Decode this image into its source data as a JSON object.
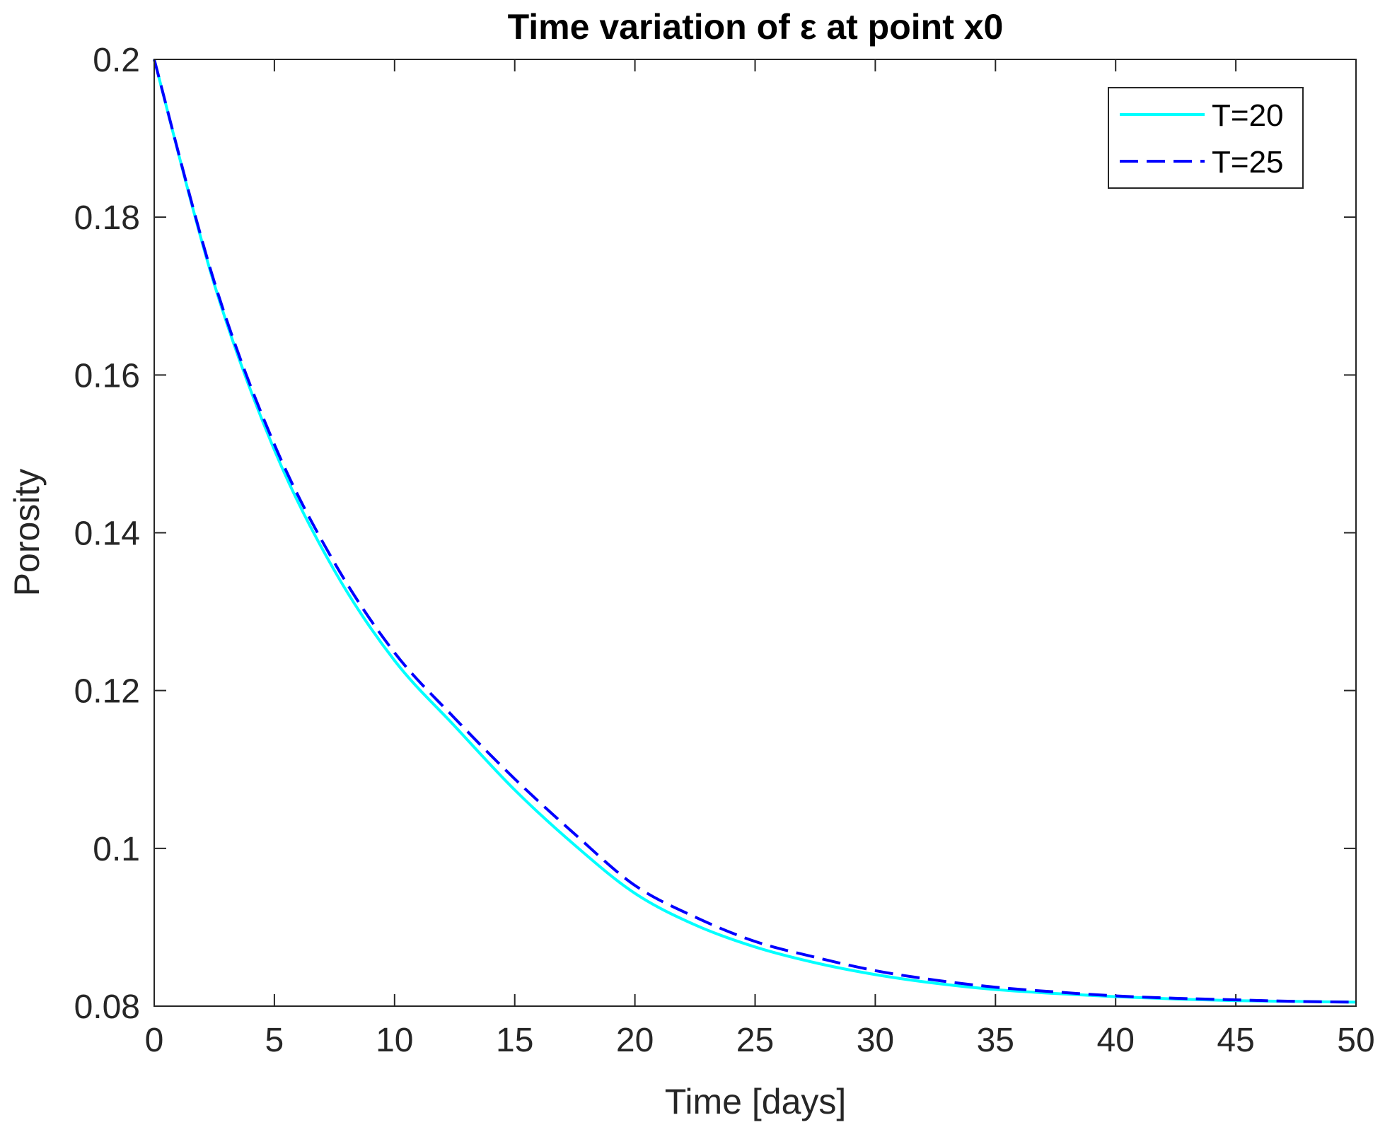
{
  "chart_data": {
    "type": "line",
    "title": "Time variation of ε at point x0",
    "xlabel": "Time [days]",
    "ylabel": "Porosity",
    "xlim": [
      0,
      50
    ],
    "ylim": [
      0.08,
      0.2
    ],
    "xticks": [
      0,
      5,
      10,
      15,
      20,
      25,
      30,
      35,
      40,
      45,
      50
    ],
    "yticks": [
      0.08,
      0.1,
      0.12,
      0.14,
      0.16,
      0.18,
      0.2
    ],
    "xtick_labels": [
      "0",
      "5",
      "10",
      "15",
      "20",
      "25",
      "30",
      "35",
      "40",
      "45",
      "50"
    ],
    "ytick_labels": [
      "0.08",
      "0.1",
      "0.12",
      "0.14",
      "0.16",
      "0.18",
      "0.2"
    ],
    "grid": false,
    "legend_position": "top-right",
    "x": [
      0,
      2.5,
      5,
      7.5,
      10,
      12.5,
      15,
      17.5,
      20,
      22.5,
      25,
      27.5,
      30,
      32.5,
      35,
      37.5,
      40,
      42.5,
      45,
      47.5,
      50
    ],
    "series": [
      {
        "name": "T=20",
        "color": "#00ffff",
        "style": "solid",
        "values": [
          0.2,
          0.1715,
          0.1505,
          0.1352,
          0.1238,
          0.1155,
          0.1074,
          0.1004,
          0.0943,
          0.0903,
          0.0875,
          0.0855,
          0.084,
          0.0829,
          0.0821,
          0.0816,
          0.0812,
          0.0809,
          0.0807,
          0.0806,
          0.0805
        ]
      },
      {
        "name": "T=25",
        "color": "#0000ff",
        "style": "dashed",
        "values": [
          0.2,
          0.1718,
          0.1512,
          0.1362,
          0.1248,
          0.1165,
          0.1088,
          0.1018,
          0.0953,
          0.0913,
          0.0882,
          0.0862,
          0.0845,
          0.0833,
          0.0824,
          0.0818,
          0.0813,
          0.081,
          0.0808,
          0.0806,
          0.0805
        ]
      }
    ]
  }
}
